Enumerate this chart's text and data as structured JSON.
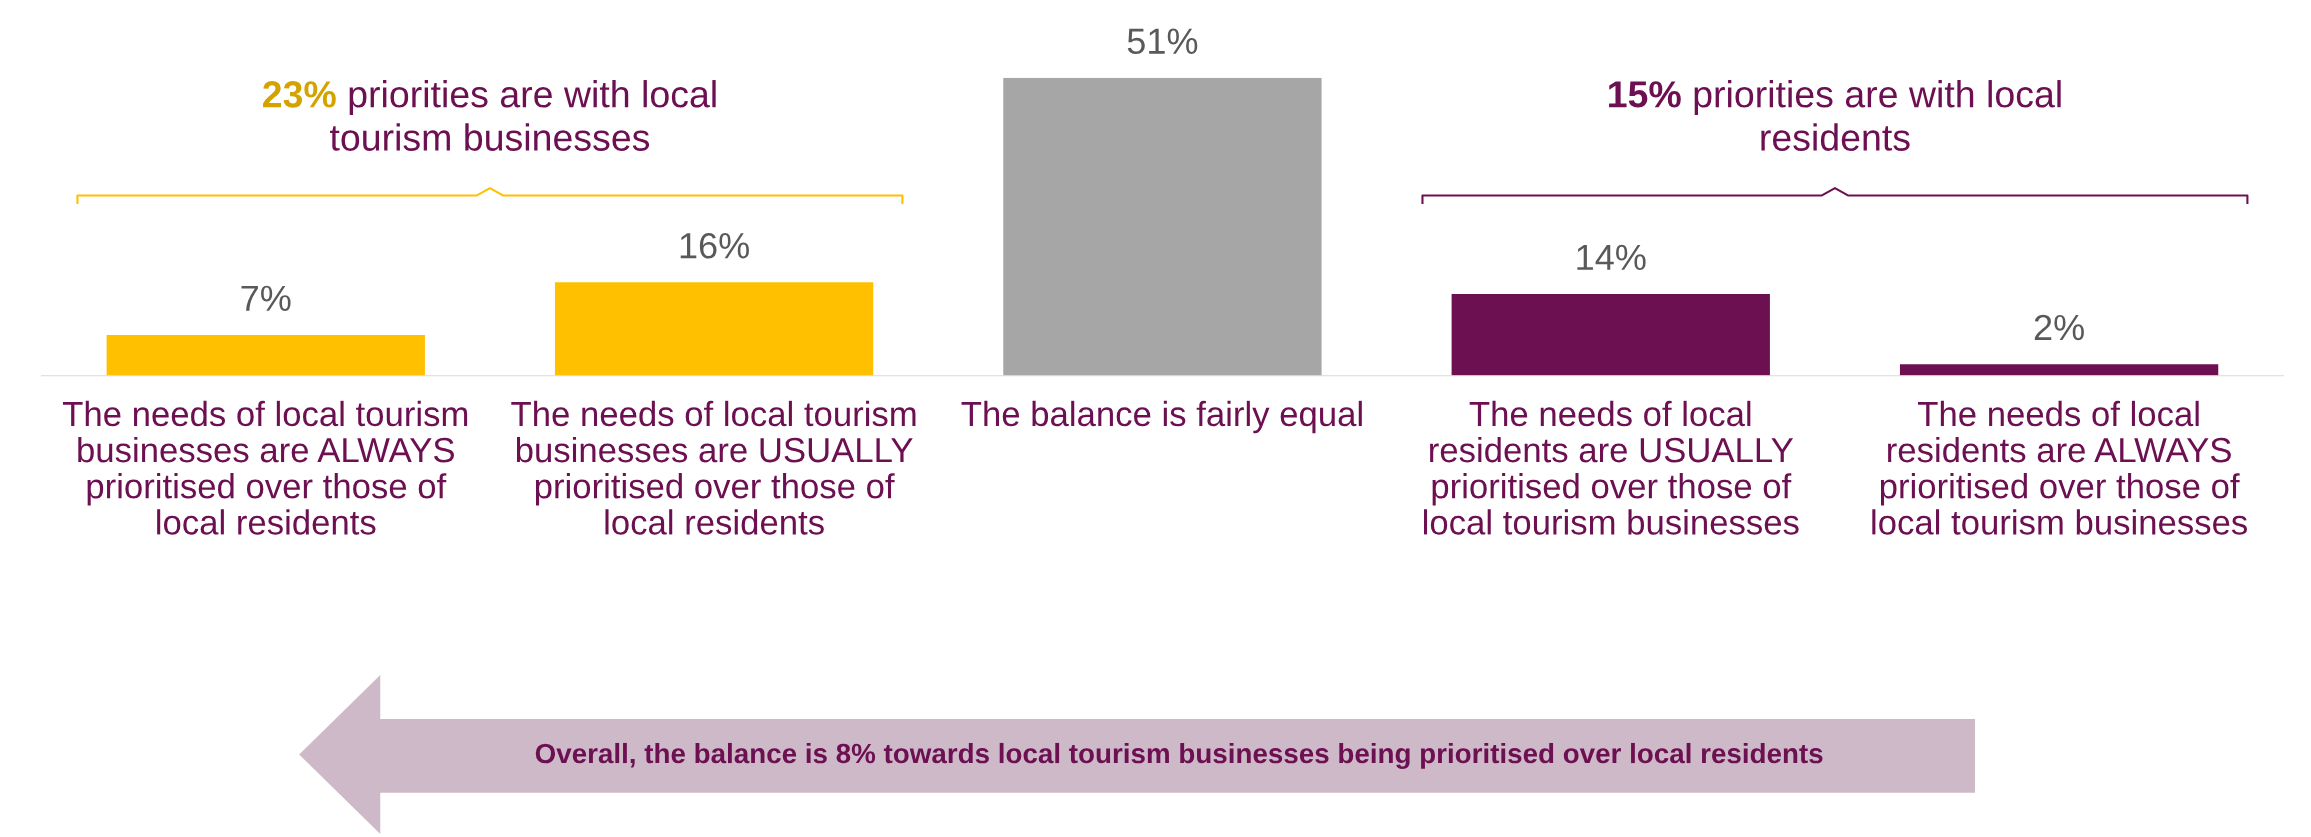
{
  "chart_data": {
    "type": "bar",
    "categories": [
      "The needs of local tourism businesses are ALWAYS prioritised over those of local residents",
      "The needs of local tourism businesses are USUALLY prioritised over those of local residents",
      "The balance is fairly equal",
      "The needs of local residents are USUALLY prioritised over those of local tourism businesses",
      "The needs of local residents are ALWAYS prioritised over those of local tourism businesses"
    ],
    "values": [
      7,
      16,
      51,
      14,
      2
    ],
    "colors": [
      "#ffc000",
      "#ffc000",
      "#a6a6a6",
      "#6d1052",
      "#6d1052"
    ],
    "data_labels": true,
    "value_labels": [
      "7%",
      "16%",
      "51%",
      "14%",
      "2%"
    ],
    "annotations": [
      "23% priorities are with local tourism businesses",
      "15% priorities are with local residents",
      "Overall, the balance is 8% towards local tourism businesses being prioritised over local residents"
    ]
  }
}
